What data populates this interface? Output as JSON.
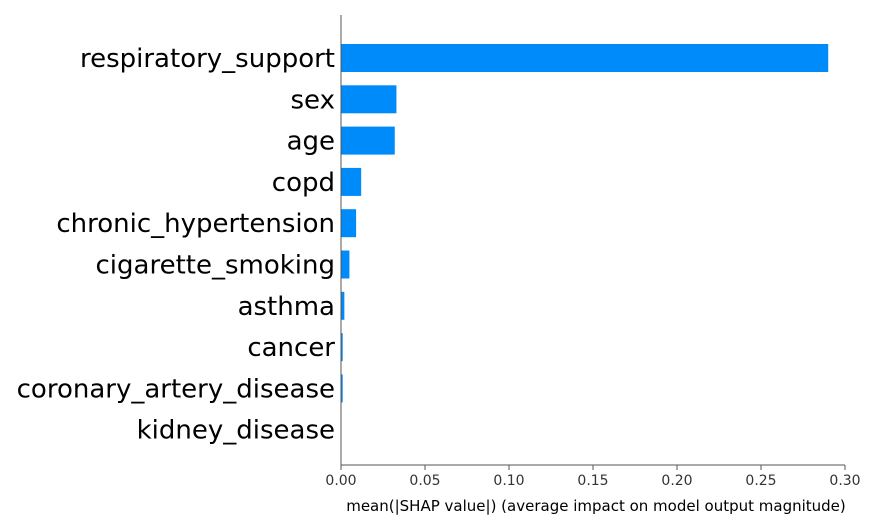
{
  "chart_data": {
    "type": "bar",
    "orientation": "horizontal",
    "title": "",
    "xlabel": "mean(|SHAP value|) (average impact on model output magnitude)",
    "ylabel": "",
    "xlim": [
      0,
      0.3
    ],
    "xticks": [
      "0.00",
      "0.05",
      "0.10",
      "0.15",
      "0.20",
      "0.25",
      "0.30"
    ],
    "grid": false,
    "bar_color": "#008bfb",
    "categories": [
      "respiratory_support",
      "sex",
      "age",
      "copd",
      "chronic_hypertension",
      "cigarette_smoking",
      "asthma",
      "cancer",
      "coronary_artery_disease",
      "kidney_disease"
    ],
    "values": [
      0.29,
      0.033,
      0.032,
      0.012,
      0.009,
      0.005,
      0.002,
      0.001,
      0.001,
      0.0
    ]
  }
}
